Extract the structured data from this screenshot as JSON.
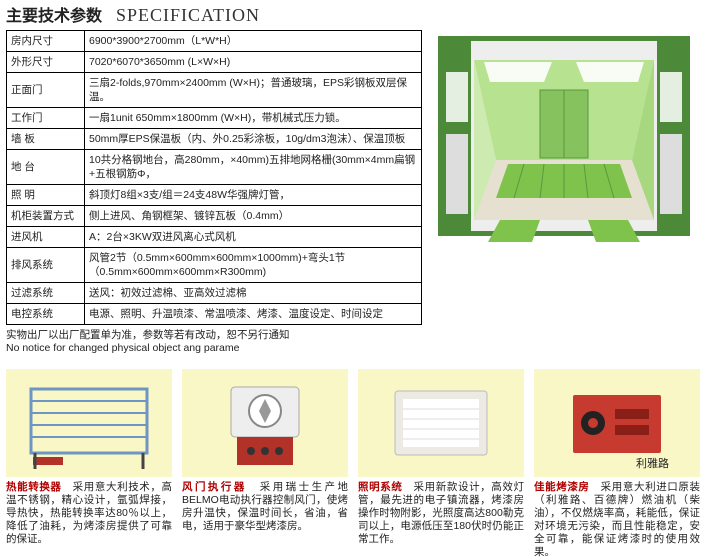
{
  "title": {
    "cn": "主要技术参数",
    "en": "SPECIFICATION"
  },
  "spec_rows": [
    {
      "k": "房内尺寸",
      "v": "6900*3900*2700mm（L*W*H）"
    },
    {
      "k": "外形尺寸",
      "v": "7020*6070*3650mm (L×W×H)"
    },
    {
      "k": "正面门",
      "v": "三扇2-folds,970mm×2400mm (W×H)；普通玻璃，EPS彩钢板双层保温。"
    },
    {
      "k": "工作门",
      "v": "一扇1unit 650mm×1800mm (W×H)，带机械式压力锁。"
    },
    {
      "k": "墙 板",
      "v": "50mm厚EPS保温板（内、外0.25彩涂板，10g/dm3泡沫）、保温顶板"
    },
    {
      "k": "地 台",
      "v": "10共分格钢地台，高280mm，×40mm)五排地网格栅(30mm×4mm扁钢+五根钢筋Φ，"
    },
    {
      "k": "照 明",
      "v": "斜顶灯8组×3支/组＝24支48W华强牌灯管，"
    },
    {
      "k": "机柜装置方式",
      "v": "侧上进风、角钢框架、镀锌瓦板（0.4mm）"
    },
    {
      "k": "进风机",
      "v": "A：2台×3KW双进风离心式风机"
    },
    {
      "k": "排风系统",
      "v": "风管2节（0.5mm×600mm×600mm×1000mm)+弯头1节（0.5mm×600mm×600mm×R300mm)"
    },
    {
      "k": "过滤系统",
      "v": "送风：初效过滤棉、亚高效过滤棉"
    },
    {
      "k": "电控系统",
      "v": "电源、照明、升温喷漆、常温喷漆、烤漆、温度设定、时间设定"
    }
  ],
  "note": {
    "cn": "实物出厂以出厂配置单为准，参数等若有改动，恕不另行通知",
    "en": "No notice for changed physical object ang parame"
  },
  "components": [
    {
      "title": "热能转换器",
      "desc": "采用意大利技术，高温不锈钢，精心设计，氩弧焊接，导热快，热能转换率达80％以上，降低了油耗，为烤漆房提供了可靠的保证。"
    },
    {
      "title": "风门执行器",
      "desc": "采用瑞士生产地BELMO电动执行器控制风门，使烤房升温快，保温时间长，省油，省电，适用于豪华型烤漆房。"
    },
    {
      "title": "照明系统",
      "desc": "采用新款设计，高效灯管，最先进的电子镇流器，烤漆房操作时物附影，光照度高达800勒克司以上，电源低压至180伏时仍能正常工作。"
    },
    {
      "title": "佳能烤漆房",
      "desc": "采用意大利进口原装（利雅路、百德牌）燃油机（柴油），不仅燃烧率高，耗能低，保证对环境无污染，而且性能稳定，安全可靠，能保证烤漆时的使用效果。"
    }
  ],
  "booth_label": "利雅路",
  "colors": {
    "cream": "#f9f7c5",
    "booth_outer": "#4c8a3a",
    "booth_inner": "#b7e28f",
    "booth_floor": "#7fc24c",
    "red_title": "#b00000",
    "red_box": "#c73a2f",
    "heat_frame": "#6d96c4",
    "actuator_red": "#b23128"
  }
}
